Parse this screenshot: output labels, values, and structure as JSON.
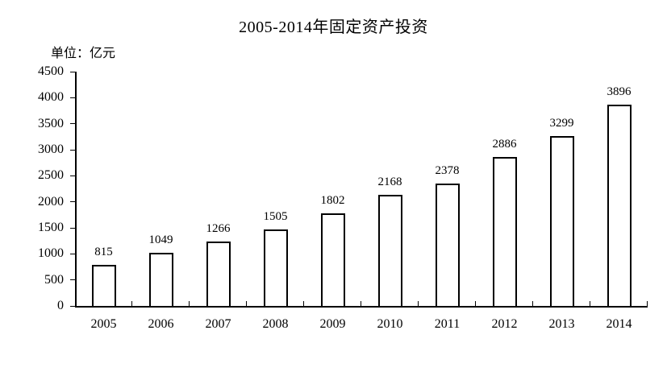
{
  "figure": {
    "background": "#ffffff",
    "text_color": "#000000"
  },
  "chart_data": {
    "type": "bar",
    "title": "2005-2014年固定资产投资",
    "unit_label": "单位：亿元",
    "categories": [
      "2005",
      "2006",
      "2007",
      "2008",
      "2009",
      "2010",
      "2011",
      "2012",
      "2013",
      "2014"
    ],
    "values": [
      815,
      1049,
      1266,
      1505,
      1802,
      2168,
      2378,
      2886,
      3299,
      3896
    ],
    "value_labels": [
      "815",
      "1049",
      "1266",
      "1505",
      "1802",
      "2168",
      "2378",
      "2886",
      "3299",
      "3896"
    ],
    "xlabel": "",
    "ylabel": "亿元",
    "ylim": [
      0,
      4500
    ],
    "yticks": [
      0,
      500,
      1000,
      1500,
      2000,
      2500,
      3000,
      3500,
      4000,
      4500
    ],
    "grid": false,
    "legend": false,
    "bar_fill": "#ffffff",
    "bar_border": "#000000"
  }
}
